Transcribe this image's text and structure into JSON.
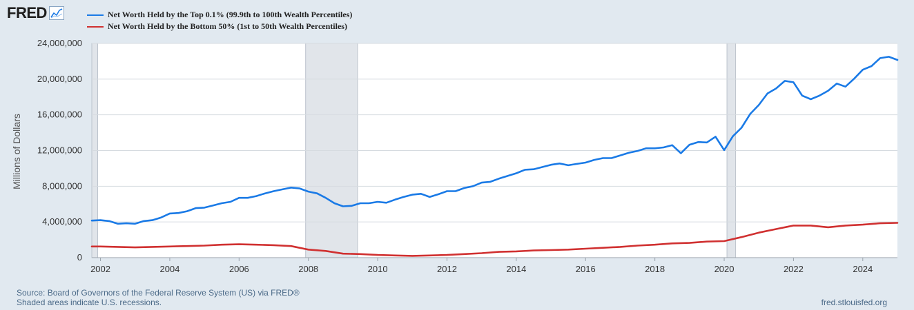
{
  "header": {
    "logo_text": "FRED",
    "logo_icon": "line-graph-icon"
  },
  "legend": [
    {
      "name": "Net Worth Held by the Top 0.1% (99.9th to 100th Wealth Percentiles)",
      "color": "#1a7ae6"
    },
    {
      "name": "Net Worth Held by the Bottom 50% (1st to 50th Wealth Percentiles)",
      "color": "#d03030"
    }
  ],
  "footer": {
    "source": "Source: Board of Governors of the Federal Reserve System (US) via FRED®",
    "note": "Shaded areas indicate U.S. recessions.",
    "url": "fred.stlouisfed.org"
  },
  "chart_data": {
    "type": "line",
    "ylabel": "Millions of Dollars",
    "xlabel": "",
    "xlim": [
      2001.75,
      2025.0
    ],
    "ylim": [
      0,
      24000000
    ],
    "yticks": [
      0,
      4000000,
      8000000,
      12000000,
      16000000,
      20000000,
      24000000
    ],
    "ytick_labels": [
      "0",
      "4,000,000",
      "8,000,000",
      "12,000,000",
      "16,000,000",
      "20,000,000",
      "24,000,000"
    ],
    "xticks": [
      2002,
      2004,
      2006,
      2008,
      2010,
      2012,
      2014,
      2016,
      2018,
      2020,
      2022,
      2024
    ],
    "xtick_labels": [
      "2002",
      "2004",
      "2006",
      "2008",
      "2010",
      "2012",
      "2014",
      "2016",
      "2018",
      "2020",
      "2022",
      "2024"
    ],
    "recessions": [
      [
        2001.75,
        2001.92
      ],
      [
        2007.92,
        2009.42
      ],
      [
        2020.08,
        2020.33
      ]
    ],
    "grid": true,
    "series": [
      {
        "name": "Net Worth Held by the Top 0.1% (99.9th to 100th Wealth Percentiles)",
        "color": "#1a7ae6",
        "x": [
          2001.75,
          2002.0,
          2002.25,
          2002.5,
          2002.75,
          2003.0,
          2003.25,
          2003.5,
          2003.75,
          2004.0,
          2004.25,
          2004.5,
          2004.75,
          2005.0,
          2005.25,
          2005.5,
          2005.75,
          2006.0,
          2006.25,
          2006.5,
          2006.75,
          2007.0,
          2007.25,
          2007.5,
          2007.75,
          2008.0,
          2008.25,
          2008.5,
          2008.75,
          2009.0,
          2009.25,
          2009.5,
          2009.75,
          2010.0,
          2010.25,
          2010.5,
          2010.75,
          2011.0,
          2011.25,
          2011.5,
          2011.75,
          2012.0,
          2012.25,
          2012.5,
          2012.75,
          2013.0,
          2013.25,
          2013.5,
          2013.75,
          2014.0,
          2014.25,
          2014.5,
          2014.75,
          2015.0,
          2015.25,
          2015.5,
          2015.75,
          2016.0,
          2016.25,
          2016.5,
          2016.75,
          2017.0,
          2017.25,
          2017.5,
          2017.75,
          2018.0,
          2018.25,
          2018.5,
          2018.75,
          2019.0,
          2019.25,
          2019.5,
          2019.75,
          2020.0,
          2020.25,
          2020.5,
          2020.75,
          2021.0,
          2021.25,
          2021.5,
          2021.75,
          2022.0,
          2022.25,
          2022.5,
          2022.75,
          2023.0,
          2023.25,
          2023.5,
          2023.75,
          2024.0,
          2024.25,
          2024.5,
          2024.75,
          2025.0
        ],
        "values": [
          4150000,
          4200000,
          4100000,
          3800000,
          3850000,
          3800000,
          4100000,
          4200000,
          4500000,
          4950000,
          5000000,
          5200000,
          5550000,
          5600000,
          5850000,
          6100000,
          6250000,
          6700000,
          6700000,
          6900000,
          7200000,
          7450000,
          7650000,
          7850000,
          7750000,
          7400000,
          7200000,
          6700000,
          6100000,
          5750000,
          5800000,
          6100000,
          6100000,
          6250000,
          6150000,
          6500000,
          6800000,
          7050000,
          7150000,
          6800000,
          7100000,
          7450000,
          7450000,
          7800000,
          8000000,
          8400000,
          8500000,
          8850000,
          9150000,
          9450000,
          9850000,
          9900000,
          10150000,
          10400000,
          10550000,
          10350000,
          10500000,
          10650000,
          10950000,
          11150000,
          11150000,
          11450000,
          11750000,
          11950000,
          12250000,
          12250000,
          12350000,
          12600000,
          11700000,
          12650000,
          12950000,
          12900000,
          13550000,
          12050000,
          13600000,
          14550000,
          16100000,
          17100000,
          18400000,
          18950000,
          19800000,
          19650000,
          18150000,
          17750000,
          18150000,
          18700000,
          19500000,
          19150000,
          20050000,
          21050000,
          21450000,
          22350000,
          22500000,
          22150000
        ]
      },
      {
        "name": "Net Worth Held by the Bottom 50% (1st to 50th Wealth Percentiles)",
        "color": "#d03030",
        "x": [
          2001.75,
          2002.0,
          2002.5,
          2003.0,
          2003.5,
          2004.0,
          2004.5,
          2005.0,
          2005.5,
          2006.0,
          2006.5,
          2007.0,
          2007.5,
          2008.0,
          2008.5,
          2009.0,
          2009.5,
          2010.0,
          2010.5,
          2011.0,
          2011.5,
          2012.0,
          2012.5,
          2013.0,
          2013.5,
          2014.0,
          2014.5,
          2015.0,
          2015.5,
          2016.0,
          2016.5,
          2017.0,
          2017.5,
          2018.0,
          2018.5,
          2019.0,
          2019.5,
          2020.0,
          2020.5,
          2021.0,
          2021.5,
          2022.0,
          2022.5,
          2023.0,
          2023.5,
          2024.0,
          2024.5,
          2025.0
        ],
        "values": [
          1250000,
          1250000,
          1200000,
          1150000,
          1200000,
          1250000,
          1300000,
          1350000,
          1450000,
          1500000,
          1450000,
          1400000,
          1300000,
          900000,
          750000,
          450000,
          400000,
          300000,
          250000,
          200000,
          250000,
          300000,
          400000,
          500000,
          650000,
          700000,
          800000,
          850000,
          900000,
          1000000,
          1100000,
          1200000,
          1350000,
          1450000,
          1600000,
          1650000,
          1800000,
          1850000,
          2300000,
          2800000,
          3200000,
          3600000,
          3600000,
          3400000,
          3600000,
          3700000,
          3850000,
          3900000
        ]
      }
    ]
  }
}
